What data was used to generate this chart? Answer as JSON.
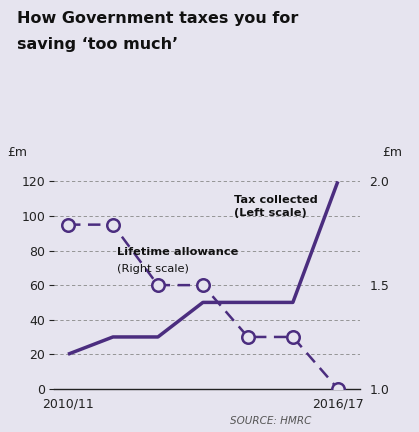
{
  "title_line1": "How Government taxes you for",
  "title_line2": "saving ‘too much’",
  "background_color": "#e6e4ef",
  "line_color": "#4b2d7f",
  "x_labels": [
    "2010/11",
    "2016/17"
  ],
  "x_values": [
    0,
    1,
    2,
    3,
    4,
    5,
    6
  ],
  "tax_collected": [
    20,
    30,
    30,
    50,
    50,
    50,
    120
  ],
  "lifetime_allowance_left": [
    95,
    95,
    60,
    60,
    30,
    30,
    0
  ],
  "left_ylim": [
    0,
    130
  ],
  "left_yticks": [
    0,
    20,
    40,
    60,
    80,
    100,
    120
  ],
  "right_ytick_labels": [
    "1.0",
    "1.5",
    "2.0"
  ],
  "right_ytick_positions": [
    0,
    60,
    120
  ],
  "left_ylabel": "£m",
  "right_ylabel": "£m",
  "label_tax": "Tax collected\n(Left scale)",
  "label_allowance_line1": "Lifetime allowance",
  "label_allowance_line2": "(Right scale)",
  "source_text": "SOURCE: HMRC"
}
